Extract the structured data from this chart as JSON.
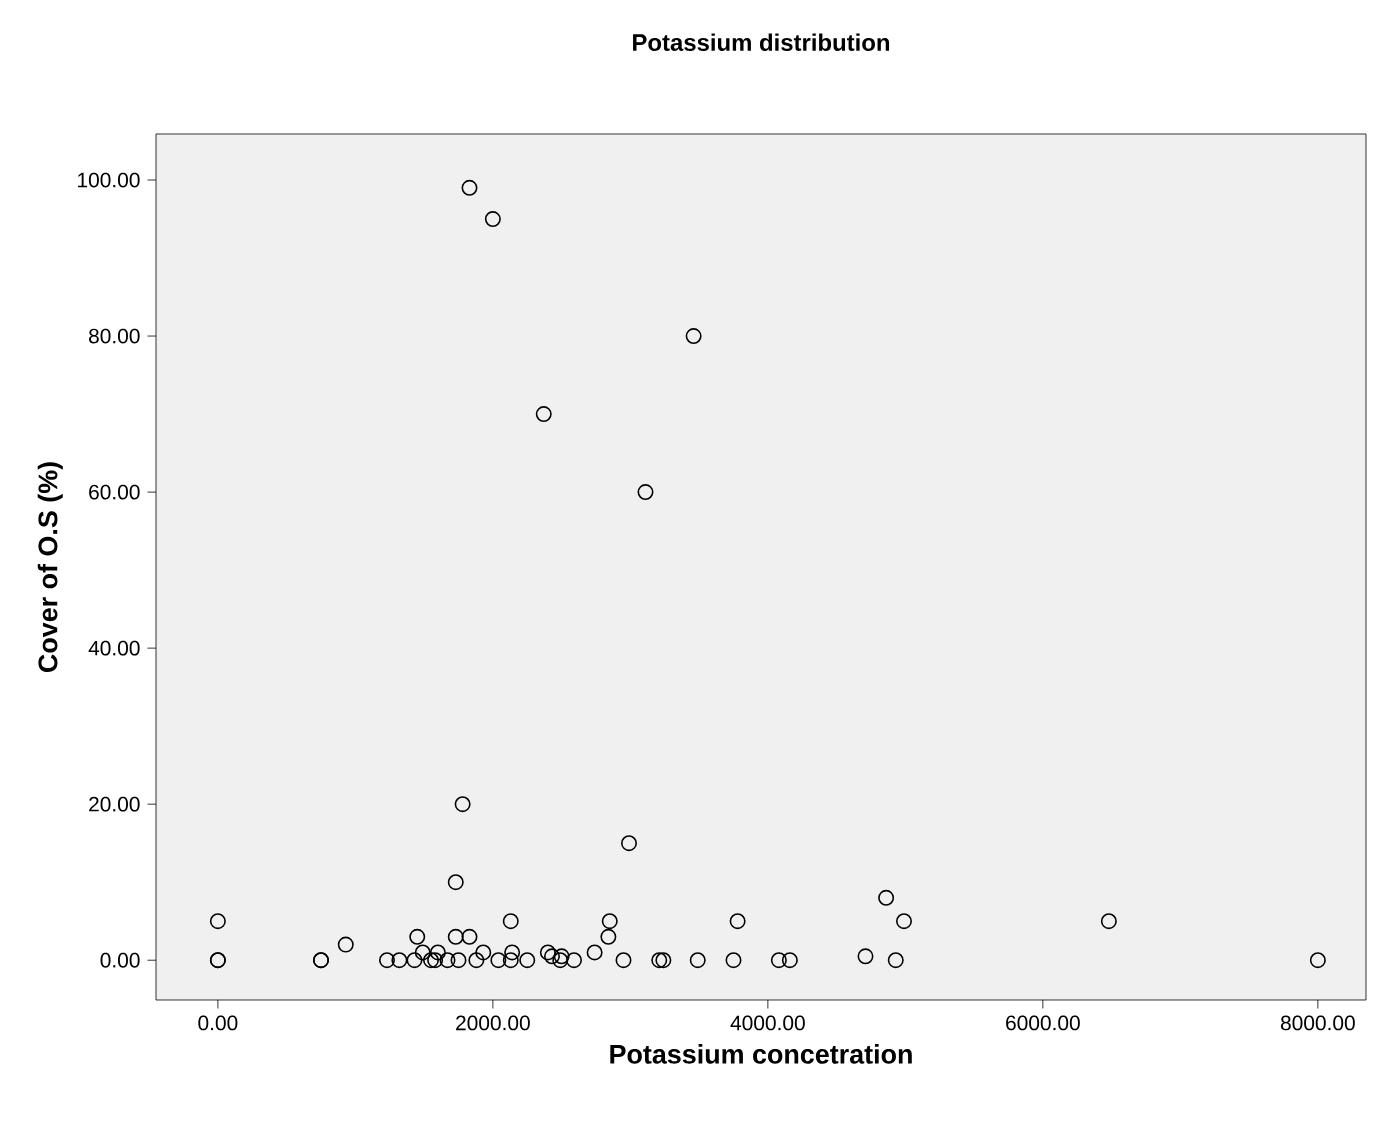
{
  "chart_data": {
    "type": "scatter",
    "title": "Potassium  distribution",
    "xlabel": "Potassium concetration",
    "ylabel": "Cover of O.S (%)",
    "marker": "circle",
    "color": "#000000",
    "xlim": [
      -450,
      8350
    ],
    "ylim": [
      -5.1,
      105.9
    ],
    "xticks": [
      {
        "value": 0,
        "label": "0.00"
      },
      {
        "value": 2000,
        "label": "2000.00"
      },
      {
        "value": 4000,
        "label": "4000.00"
      },
      {
        "value": 6000,
        "label": "6000.00"
      },
      {
        "value": 8000,
        "label": "8000.00"
      }
    ],
    "yticks": [
      {
        "value": 0,
        "label": "0.00"
      },
      {
        "value": 20,
        "label": "20.00"
      },
      {
        "value": 40,
        "label": "40.00"
      },
      {
        "value": 60,
        "label": "60.00"
      },
      {
        "value": 80,
        "label": "80.00"
      },
      {
        "value": 100,
        "label": "100.00"
      }
    ],
    "x": [
      0,
      0,
      0,
      750,
      750,
      930,
      1230,
      1320,
      1430,
      1450,
      1490,
      1550,
      1600,
      1580,
      1670,
      1730,
      1730,
      1750,
      1780,
      1830,
      1880,
      1930,
      2040,
      2130,
      2130,
      2140,
      2250,
      2400,
      2430,
      2500,
      2490,
      2590,
      2740,
      2840,
      2850,
      2950,
      2990,
      3210,
      3240,
      3490,
      3750,
      3780,
      4080,
      4160,
      4710,
      4860,
      4930,
      4990,
      6480,
      8000,
      1830,
      2000,
      2370,
      3460,
      3110
    ],
    "values": [
      5,
      0,
      0,
      0,
      0,
      2,
      0,
      0,
      0,
      3,
      1,
      0,
      1,
      0,
      0,
      10,
      3,
      0,
      20,
      3,
      0,
      1,
      0,
      5,
      0,
      1,
      0,
      1,
      0.5,
      0.5,
      0,
      0,
      1,
      3,
      5,
      0,
      15,
      0,
      0,
      0,
      0,
      5,
      0,
      0,
      0.5,
      8,
      0,
      5,
      5,
      0,
      99,
      95,
      70,
      80,
      60
    ]
  }
}
